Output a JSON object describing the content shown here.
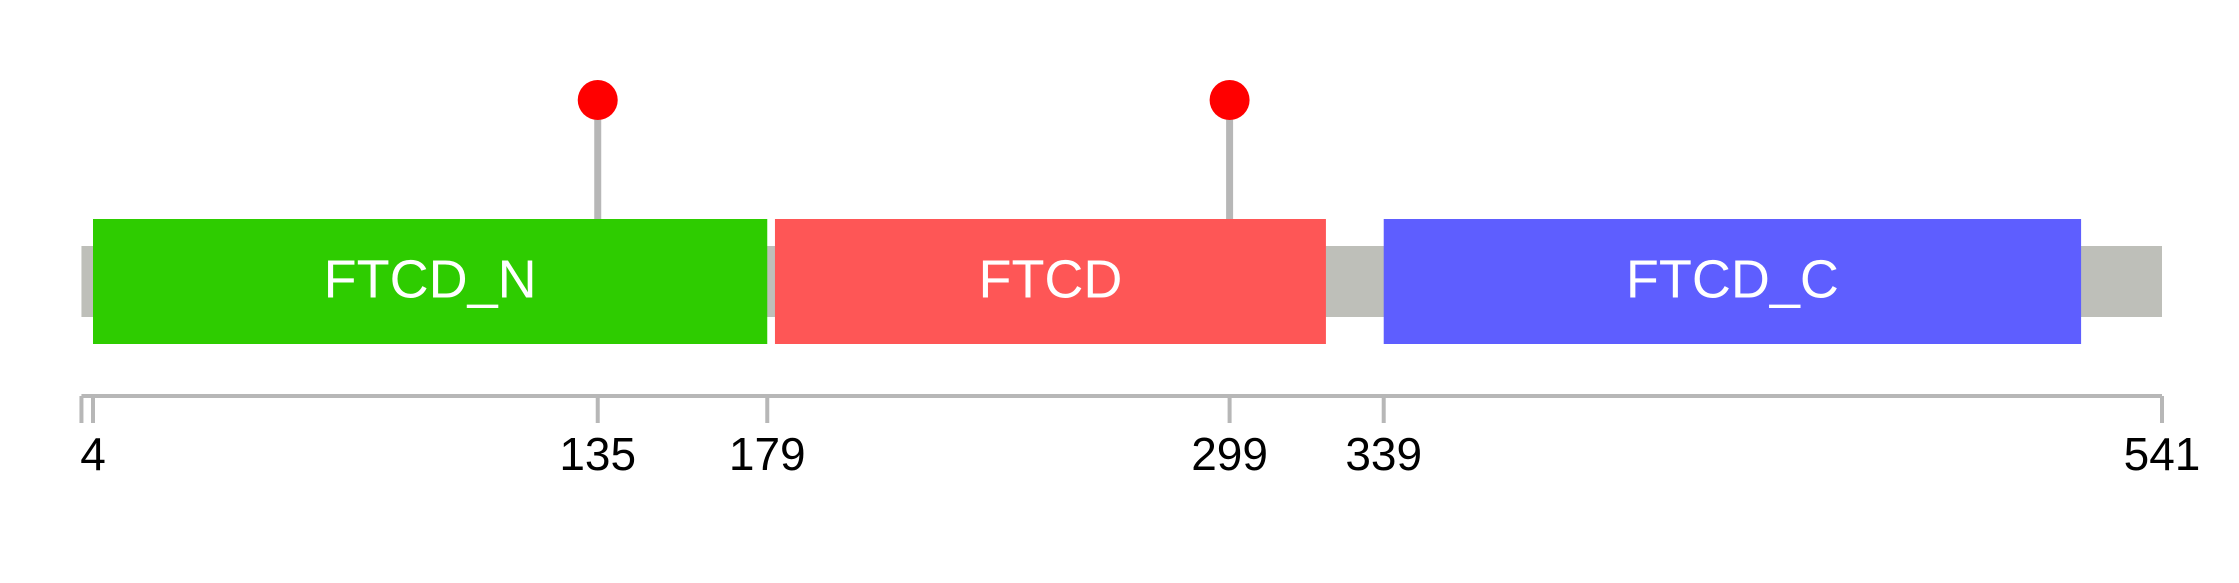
{
  "protein": {
    "start": 1,
    "end": 541,
    "color": "#bebfb9"
  },
  "domains": [
    {
      "name": "FTCD_N",
      "start": 4,
      "end": 179,
      "color": "#2ecc00"
    },
    {
      "name": "FTCD",
      "start": 181,
      "end": 324,
      "color": "#fe5656"
    },
    {
      "name": "FTCD_C",
      "start": 339,
      "end": 520,
      "color": "#5e5eff"
    }
  ],
  "mutations": [
    {
      "position": 135,
      "color": "#ff0000"
    },
    {
      "position": 299,
      "color": "#ff0000"
    }
  ],
  "axis": {
    "ticks": [
      4,
      135,
      179,
      299,
      339,
      541
    ]
  }
}
